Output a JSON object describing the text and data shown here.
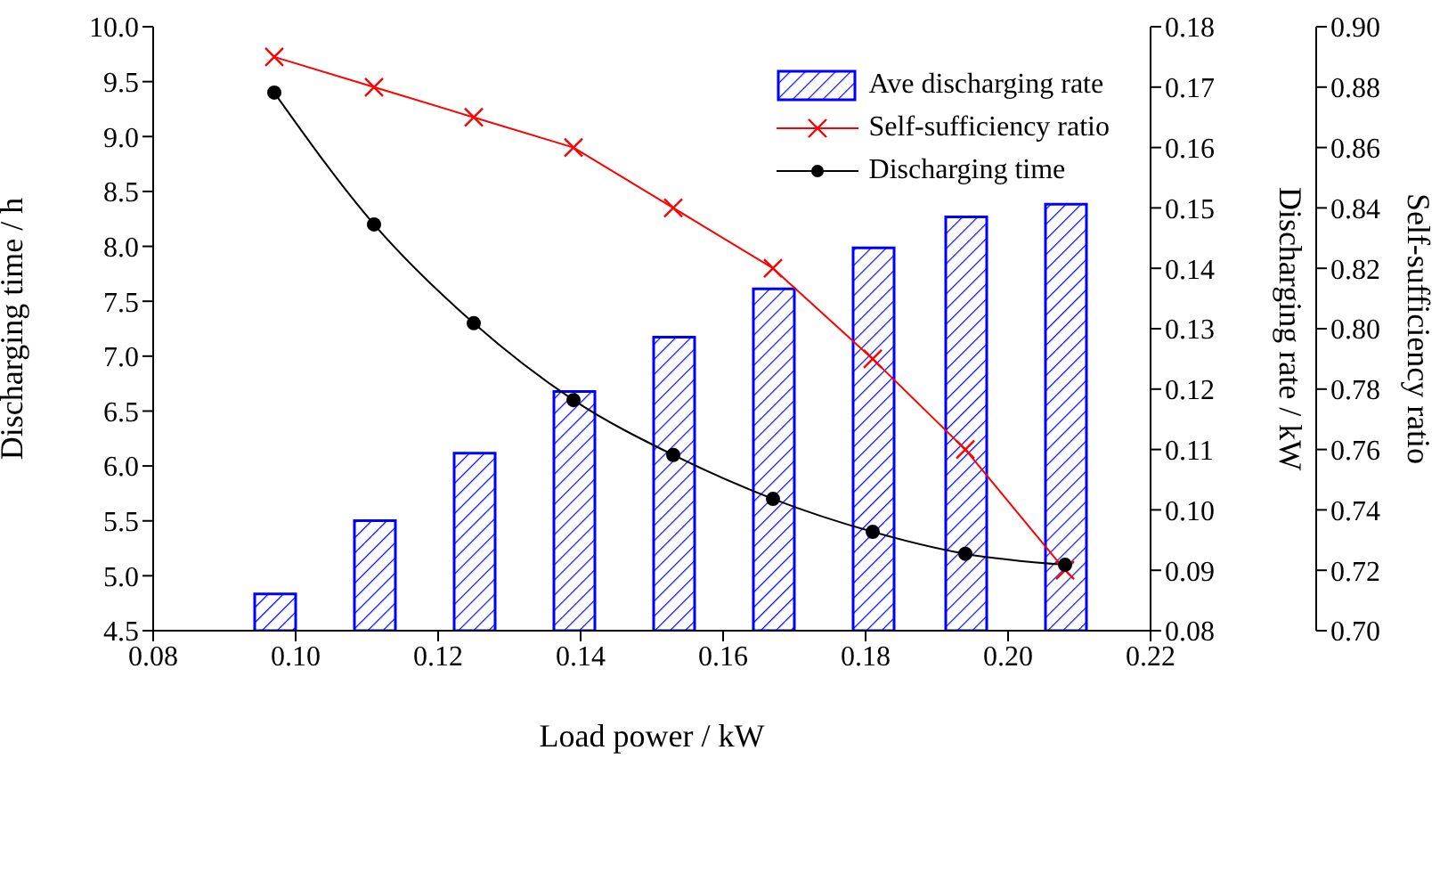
{
  "chart_data": {
    "type": "bar",
    "xlabel": "Load power / kW",
    "ylabel": "Discharging time / h",
    "y2label": "Discharging rate / kW",
    "y3label": "Self-sufficiency ratio",
    "x": [
      0.097,
      0.111,
      0.125,
      0.139,
      0.153,
      0.167,
      0.181,
      0.194,
      0.208
    ],
    "series": [
      {
        "name": "Ave discharging rate",
        "axis": "y2",
        "color": "#0000ff",
        "values": [
          0.0861,
          0.0982,
          0.1094,
          0.1196,
          0.1286,
          0.1366,
          0.1434,
          0.1485,
          0.1506
        ]
      },
      {
        "name": "Self-sufficiency ratio",
        "type": "line",
        "axis": "y3",
        "color": "#ff0000",
        "marker": "cross",
        "values": [
          0.89,
          0.88,
          0.87,
          0.86,
          0.84,
          0.82,
          0.79,
          0.76,
          0.72
        ]
      },
      {
        "name": "Discharging time",
        "type": "line",
        "axis": "y",
        "color": "#000000",
        "marker": "circle",
        "values": [
          9.4,
          8.2,
          7.3,
          6.6,
          6.1,
          5.7,
          5.4,
          5.2,
          5.1
        ]
      }
    ],
    "xlim": [
      0.08,
      0.22
    ],
    "xticks": [
      0.08,
      {
        "value": 0.1,
        "label": "0.10"
      },
      0.12,
      0.14,
      0.16,
      0.18,
      {
        "value": 0.2,
        "label": "0.20"
      },
      0.22
    ],
    "ylim": [
      4.5,
      10
    ],
    "yticks": [
      4.5,
      {
        "value": 5,
        "label": "5.0"
      },
      5.5,
      {
        "value": 6,
        "label": "6.0"
      },
      6.5,
      {
        "value": 7,
        "label": "7.0"
      },
      7.5,
      {
        "value": 8,
        "label": "8.0"
      },
      8.5,
      {
        "value": 9,
        "label": "9.0"
      },
      9.5,
      {
        "value": 10,
        "label": "10.0"
      }
    ],
    "y2lim": [
      0.08,
      0.18
    ],
    "y2ticks": [
      0.08,
      0.09,
      {
        "value": 0.1,
        "label": "0.10"
      },
      0.11,
      0.12,
      0.13,
      0.14,
      0.15,
      0.16,
      0.17,
      0.18
    ],
    "y3lim": [
      0.7,
      0.9
    ],
    "y3ticks": [
      {
        "value": 0.7,
        "label": "0.70"
      },
      0.72,
      0.74,
      0.76,
      0.78,
      {
        "value": 0.8,
        "label": "0.80"
      },
      0.82,
      0.84,
      0.86,
      0.88,
      {
        "value": 0.9,
        "label": "0.90"
      }
    ],
    "grid": false,
    "legend": "top right"
  }
}
